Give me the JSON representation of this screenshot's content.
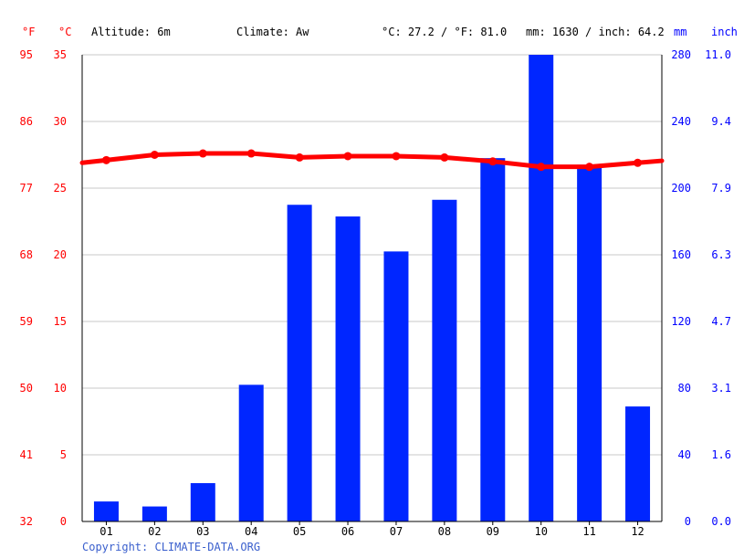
{
  "header": {
    "unit_f": "°F",
    "unit_c": "°C",
    "altitude": "Altitude: 6m",
    "climate": "Climate: Aw",
    "temp_avg": "°C: 27.2 / °F: 81.0",
    "precip_total": "mm: 1630 / inch: 64.2",
    "unit_mm": "mm",
    "unit_inch": "inch"
  },
  "copyright": "Copyright: CLIMATE-DATA.ORG",
  "colors": {
    "temperature": "#ff0000",
    "precipitation": "#0026ff",
    "grid": "#c8c8c8",
    "axis": "#000000",
    "blue_label": "#0000ff"
  },
  "chart_data": {
    "type": "bar",
    "categories": [
      "01",
      "02",
      "03",
      "04",
      "05",
      "06",
      "07",
      "08",
      "09",
      "10",
      "11",
      "12"
    ],
    "series": [
      {
        "type": "bar",
        "axis": "right",
        "values": [
          12,
          9,
          23,
          82,
          190,
          183,
          162,
          193,
          218,
          280,
          214,
          69
        ]
      },
      {
        "type": "line",
        "axis": "left",
        "values": [
          27.1,
          27.5,
          27.6,
          27.6,
          27.3,
          27.4,
          27.4,
          27.3,
          27.0,
          26.6,
          26.6,
          26.9
        ]
      }
    ],
    "left_axis": {
      "ylim": [
        0,
        35
      ],
      "celsius_ticks": [
        "0",
        "5",
        "10",
        "15",
        "20",
        "25",
        "30",
        "35"
      ],
      "fahrenheit_ticks": [
        "32",
        "41",
        "50",
        "59",
        "68",
        "77",
        "86",
        "95"
      ]
    },
    "right_axis": {
      "ylim": [
        0,
        280
      ],
      "mm_ticks": [
        "0",
        "40",
        "80",
        "120",
        "160",
        "200",
        "240",
        "280"
      ],
      "inch_ticks": [
        "0.0",
        "1.6",
        "3.1",
        "4.7",
        "6.3",
        "7.9",
        "9.4",
        "11.0"
      ]
    },
    "grid": true
  }
}
